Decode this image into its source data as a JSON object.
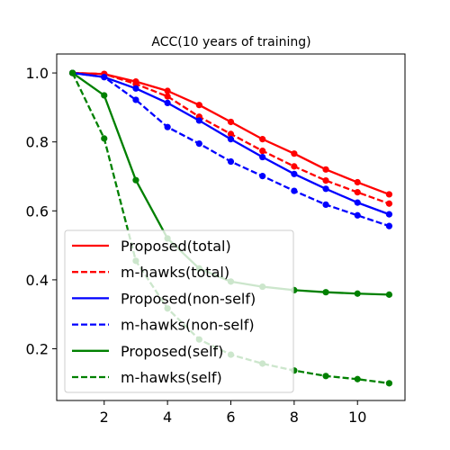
{
  "chart_data": {
    "type": "line",
    "title": "ACC(10 years of training)",
    "xlabel": "",
    "ylabel": "",
    "xlim": [
      0.5,
      11.5
    ],
    "ylim": [
      0.05,
      1.055
    ],
    "xticks": [
      2,
      4,
      6,
      8,
      10
    ],
    "yticks": [
      0.2,
      0.4,
      0.6,
      0.8,
      1.0
    ],
    "ytick_labels": [
      "0.2",
      "0.4",
      "0.6",
      "0.8",
      "1.0"
    ],
    "grid": false,
    "legend_position": "lower-left",
    "x": [
      1,
      2,
      3,
      4,
      5,
      6,
      7,
      8,
      9,
      10,
      11
    ],
    "series": [
      {
        "name": "Proposed(total)",
        "color": "#ff0000",
        "dash": "solid",
        "values": [
          1.0,
          0.997,
          0.975,
          0.948,
          0.907,
          0.858,
          0.808,
          0.766,
          0.72,
          0.683,
          0.648
        ]
      },
      {
        "name": "m-hawks(total)",
        "color": "#ff0000",
        "dash": "dashed",
        "values": [
          1.0,
          0.997,
          0.968,
          0.932,
          0.873,
          0.823,
          0.774,
          0.729,
          0.688,
          0.654,
          0.621
        ]
      },
      {
        "name": "Proposed(non-self)",
        "color": "#0000ff",
        "dash": "solid",
        "values": [
          1.0,
          0.988,
          0.955,
          0.913,
          0.862,
          0.808,
          0.756,
          0.707,
          0.664,
          0.624,
          0.59
        ]
      },
      {
        "name": "m-hawks(non-self)",
        "color": "#0000ff",
        "dash": "dashed",
        "values": [
          1.0,
          0.988,
          0.922,
          0.843,
          0.795,
          0.743,
          0.701,
          0.658,
          0.618,
          0.587,
          0.556
        ]
      },
      {
        "name": "Proposed(self)",
        "color": "#008000",
        "dash": "solid",
        "values": [
          1.0,
          0.935,
          0.689,
          0.52,
          0.433,
          0.395,
          0.38,
          0.37,
          0.364,
          0.36,
          0.357
        ]
      },
      {
        "name": "m-hawks(self)",
        "color": "#008000",
        "dash": "dashed",
        "values": [
          1.0,
          0.81,
          0.455,
          0.317,
          0.227,
          0.183,
          0.157,
          0.137,
          0.121,
          0.112,
          0.1
        ]
      }
    ]
  }
}
